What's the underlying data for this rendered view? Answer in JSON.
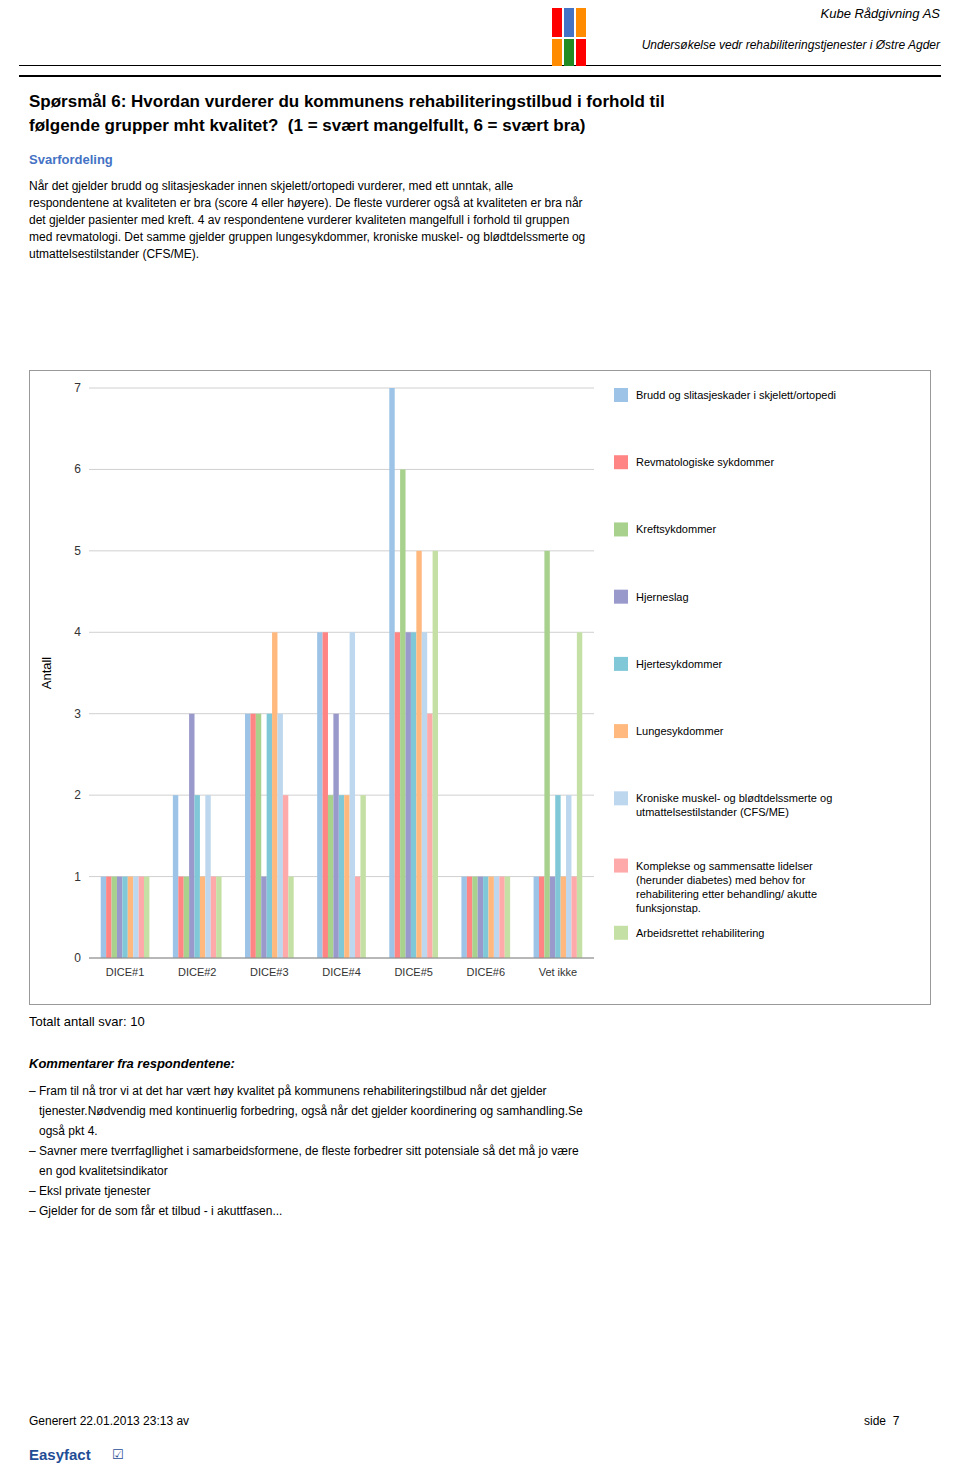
{
  "header_company": "Kube Rådgivning AS",
  "header_sub": "Undersøkelse vedr rehabiliteringstjenester i Østre Agder",
  "title_line1": "Spørsmål 6: Hvordan vurderer du kommunens rehabiliteringstilbud i forhold til",
  "title_line2": "følgende grupper mht kvalitet?  (1 = svært mangelfullt, 6 = svært bra)",
  "subtitle": "Svarfordeling",
  "body_text": "Når det gjelder brudd og slitasjeskader innen skjelett/ortopedi vurderer, med ett unntak, alle\nrespondentene at kvaliteten er bra (score 4 eller høyere). De fleste vurderer også at kvaliteten er bra når\ndet gjelder pasienter med kreft. 4 av respondentene vurderer kvaliteten mangelfull i forhold til gruppen\nmed revmatologi. Det samme gjelder gruppen lungesykdommer, kroniske muskel- og blødtdelssmerte og\nutmattelsestilstander (CFS/ME).",
  "total_svar": "Totalt antall svar: 10",
  "comments_header": "Kommentarer fra respondentene:",
  "comments": [
    "– Fram til nå tror vi at det har vært høy kvalitet på kommunens rehabiliteringstilbud når det gjelder",
    "   tjenester.Nødvendig med kontinuerlig forbedring, også når det gjelder koordinering og samhandling.Se",
    "   også pkt 4.",
    "– Savner mere tverrfagllighet i samarbeidsformene, de fleste forbedrer sitt potensiale så det må jo være",
    "   en god kvalitetsindikator",
    "– Eksl private tjenester",
    "– Gjelder for de som får et tilbud - i akuttfasen..."
  ],
  "footer_date": "Generert 22.01.2013 23:13 av",
  "footer_brand": "Easyfact",
  "footer_icon": "☑",
  "footer_page": "side  7",
  "chart_data": {
    "type": "bar",
    "ylabel": "Antall",
    "categories": [
      "DICE#1",
      "DICE#2",
      "DICE#3",
      "DICE#4",
      "DICE#5",
      "DICE#6",
      "Vet ikke"
    ],
    "series": [
      {
        "name": "Brudd og slitasjeskader i skjelett/ortopedi",
        "color": "#9DC3E6",
        "values": [
          1,
          2,
          3,
          4,
          7,
          1,
          1
        ]
      },
      {
        "name": "Revmatologiske sykdommer",
        "color": "#FF8585",
        "values": [
          1,
          1,
          3,
          4,
          4,
          1,
          1
        ]
      },
      {
        "name": "Kreftsykdommer",
        "color": "#A9D18E",
        "values": [
          1,
          1,
          3,
          2,
          6,
          1,
          5
        ]
      },
      {
        "name": "Hjerneslag",
        "color": "#9999CC",
        "values": [
          1,
          3,
          1,
          3,
          4,
          1,
          1
        ]
      },
      {
        "name": "Hjertesykdommer",
        "color": "#80C8D8",
        "values": [
          1,
          2,
          3,
          2,
          4,
          1,
          2
        ]
      },
      {
        "name": "Lungesykdommer",
        "color": "#FFB97F",
        "values": [
          1,
          1,
          4,
          2,
          5,
          1,
          1
        ]
      },
      {
        "name": "Kroniske muskel- og blødtdelssmerte og\nutmattelsestilstander (CFS/ME)",
        "color": "#BDD7EE",
        "values": [
          1,
          2,
          3,
          4,
          4,
          1,
          2
        ]
      },
      {
        "name": "Komplekse og sammensatte lidelser\n(herunder diabetes) med behov for\nrehabilitering etter behandling/ akutte\nfunksjonstap.",
        "color": "#FFAAAA",
        "values": [
          1,
          1,
          2,
          1,
          3,
          1,
          1
        ]
      },
      {
        "name": "Arbeidsrettet rehabilitering",
        "color": "#C5E0A5",
        "values": [
          1,
          1,
          1,
          2,
          5,
          1,
          4
        ]
      }
    ],
    "ylim": [
      0,
      7
    ],
    "yticks": [
      0,
      1,
      2,
      3,
      4,
      5,
      6,
      7
    ],
    "grid": true,
    "legend": "right"
  }
}
